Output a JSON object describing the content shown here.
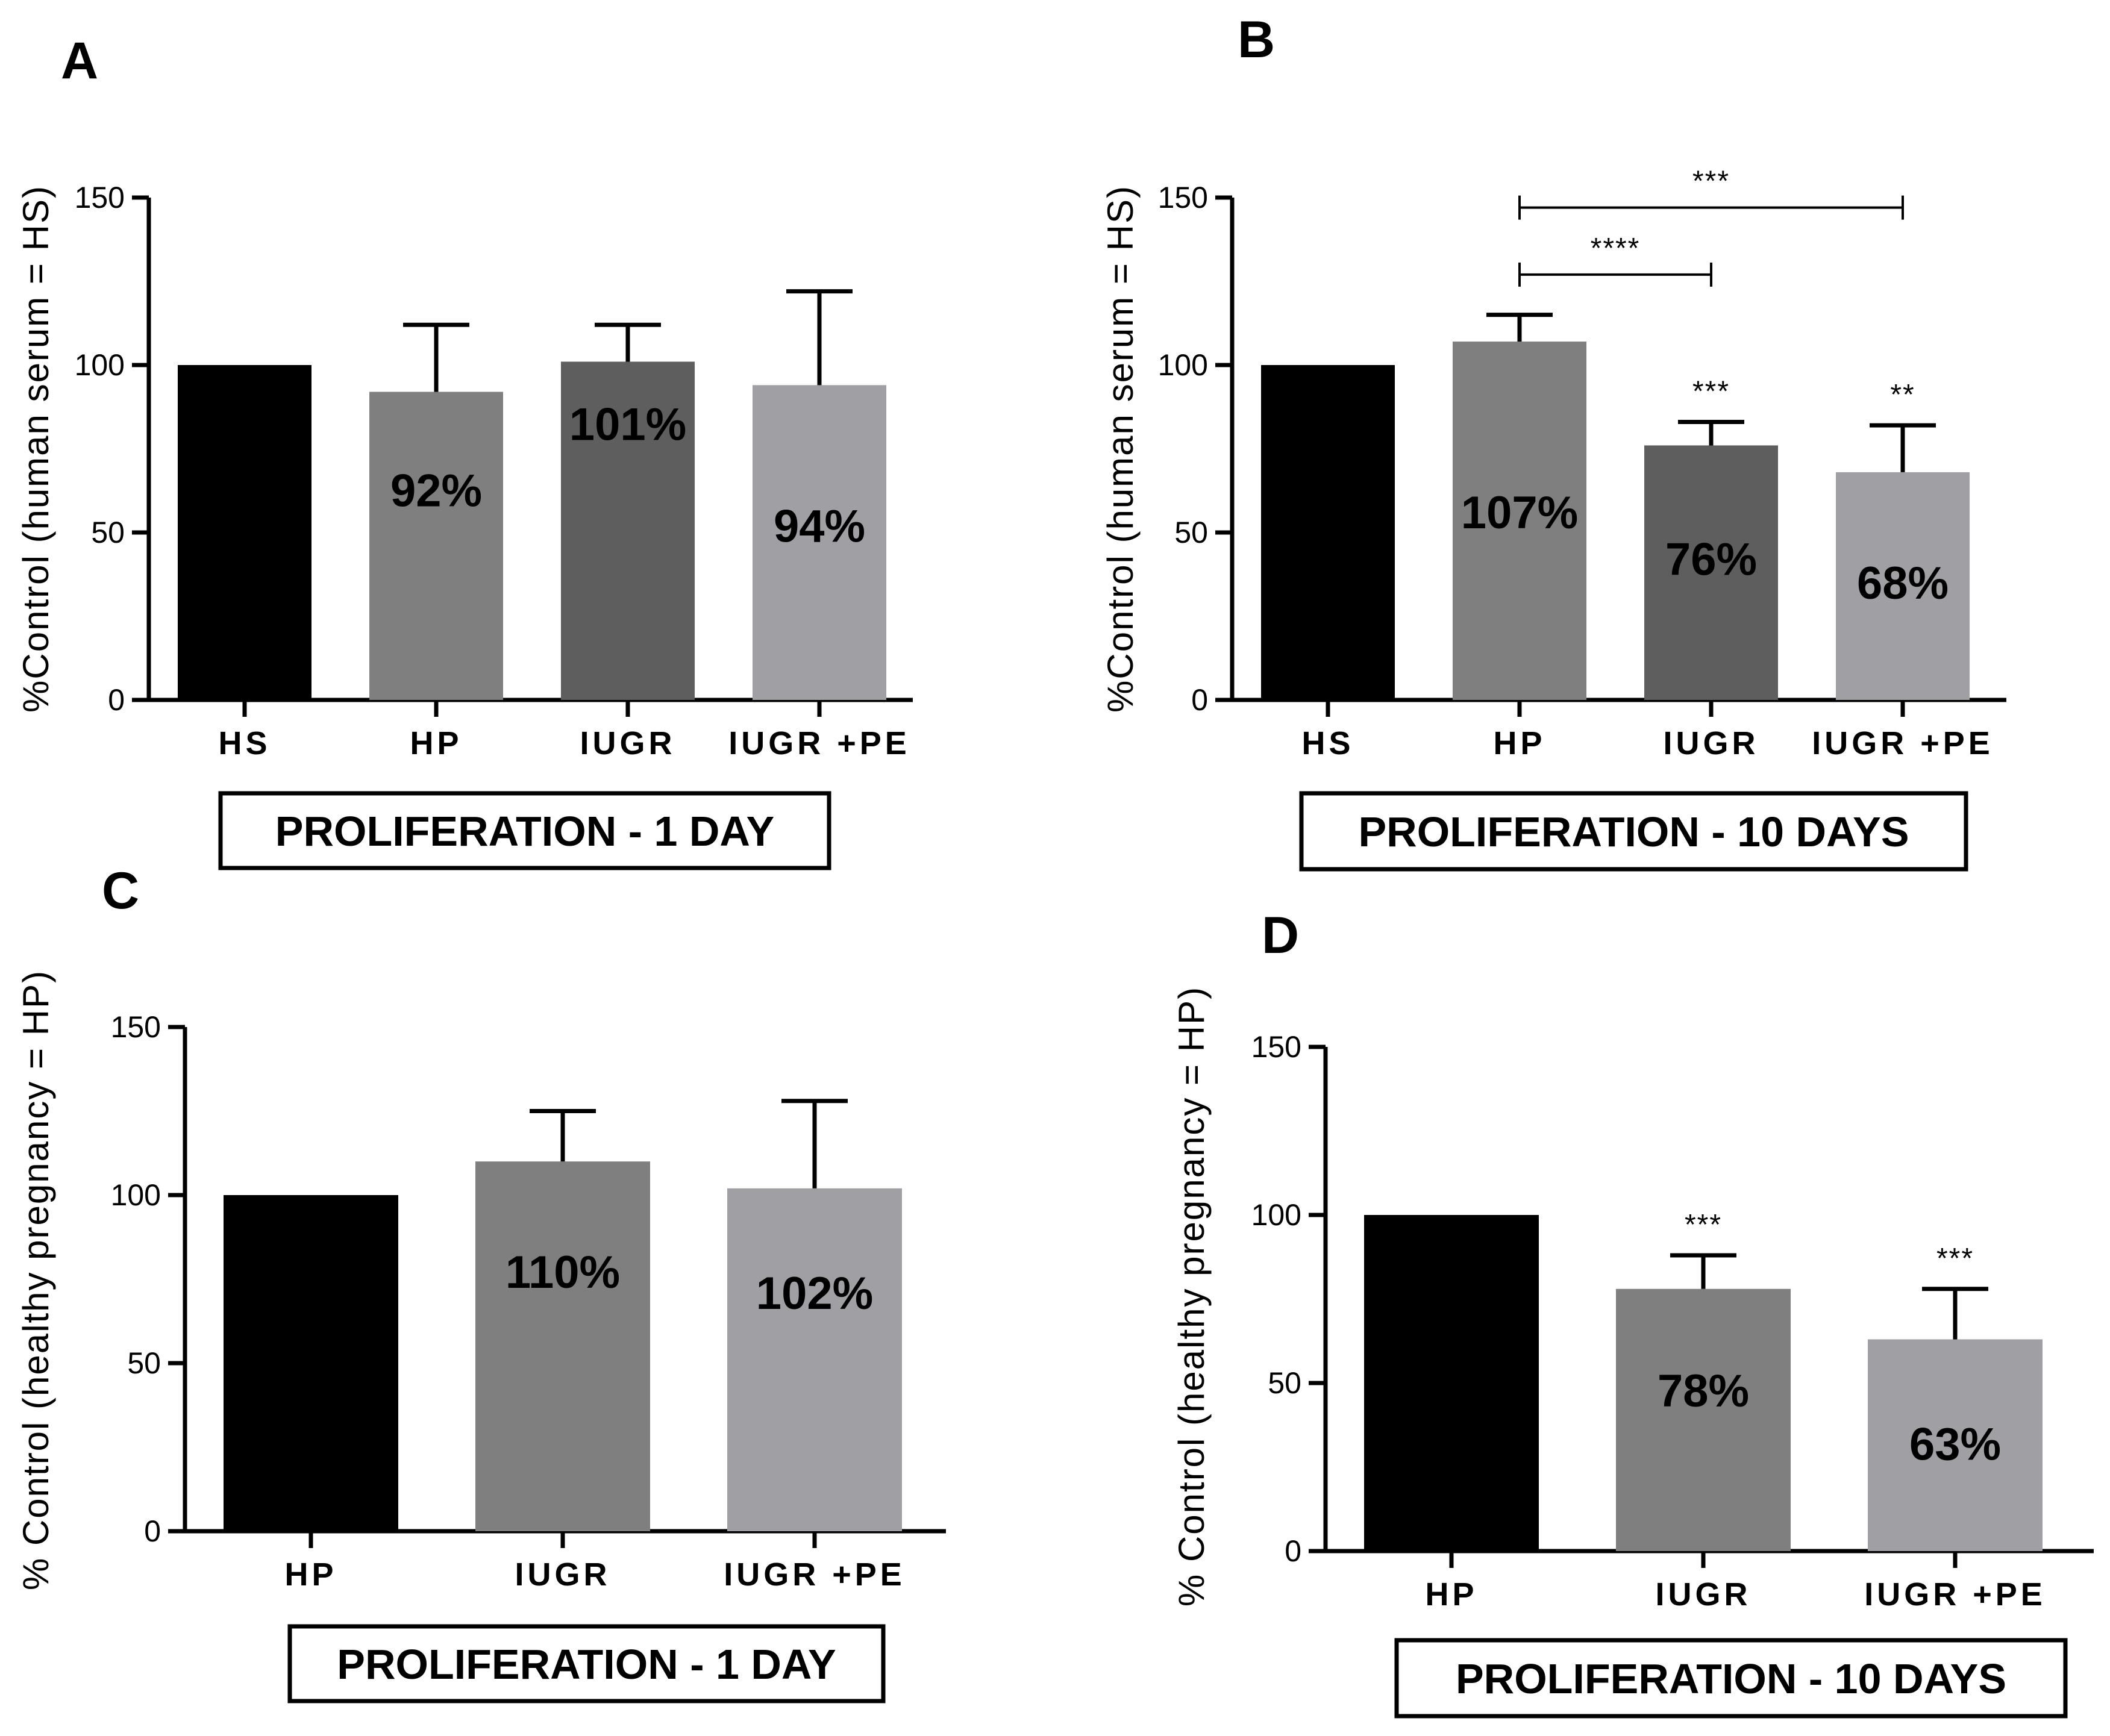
{
  "chart_data": [
    {
      "type": "bar",
      "panel": "A",
      "categories": [
        "HS",
        "HP",
        "IUGR",
        "IUGR +PE"
      ],
      "values": [
        100,
        92,
        101,
        94
      ],
      "errors": [
        0,
        20,
        11,
        28
      ],
      "bar_labels": [
        "",
        "92%",
        "101%",
        "94%"
      ],
      "colors": [
        "#000000",
        "#7f7f7f",
        "#5e5e5e",
        "#a09fa4"
      ],
      "ylabel": "%Control (human serum = HS)",
      "ylim": [
        0,
        150
      ],
      "yticks": [
        0,
        50,
        100,
        150
      ],
      "star_marks": [
        "",
        "",
        "",
        ""
      ],
      "brackets": [],
      "caption": "PROLIFERATION  - 1 DAY"
    },
    {
      "type": "bar",
      "panel": "B",
      "categories": [
        "HS",
        "HP",
        "IUGR",
        "IUGR +PE"
      ],
      "values": [
        100,
        107,
        76,
        68
      ],
      "errors": [
        0,
        8,
        7,
        14
      ],
      "bar_labels": [
        "",
        "107%",
        "76%",
        "68%"
      ],
      "colors": [
        "#000000",
        "#7f7f7f",
        "#5e5e5e",
        "#a09fa4"
      ],
      "ylabel": "%Control (human serum = HS)",
      "ylim": [
        0,
        150
      ],
      "yticks": [
        0,
        50,
        100,
        150
      ],
      "star_marks": [
        "",
        "",
        "***",
        "**"
      ],
      "brackets": [
        {
          "from": 1,
          "to": 2,
          "value": 127,
          "label": "****"
        },
        {
          "from": 1,
          "to": 3,
          "value": 147,
          "label": "***"
        }
      ],
      "caption": "PROLIFERATION  - 10 DAYS"
    },
    {
      "type": "bar",
      "panel": "C",
      "categories": [
        "HP",
        "IUGR",
        "IUGR +PE"
      ],
      "values": [
        100,
        110,
        102
      ],
      "errors": [
        0,
        15,
        26
      ],
      "bar_labels": [
        "",
        "110%",
        "102%"
      ],
      "colors": [
        "#000000",
        "#7f7f7f",
        "#a09fa4"
      ],
      "ylabel": "% Control (healthy pregnancy = HP)",
      "ylim": [
        0,
        150
      ],
      "yticks": [
        0,
        50,
        100,
        150
      ],
      "star_marks": [
        "",
        "",
        ""
      ],
      "brackets": [],
      "caption": "PROLIFERATION - 1 DAY"
    },
    {
      "type": "bar",
      "panel": "D",
      "categories": [
        "HP",
        "IUGR",
        "IUGR +PE"
      ],
      "values": [
        100,
        78,
        63
      ],
      "errors": [
        0,
        10,
        15
      ],
      "bar_labels": [
        "",
        "78%",
        "63%"
      ],
      "colors": [
        "#000000",
        "#7f7f7f",
        "#a09fa4"
      ],
      "ylabel": "% Control (healthy pregnancy = HP)",
      "ylim": [
        0,
        150
      ],
      "yticks": [
        0,
        50,
        100,
        150
      ],
      "star_marks": [
        "",
        "***",
        "***"
      ],
      "brackets": [],
      "caption": "PROLIFERATION  - 10 DAYS"
    }
  ]
}
